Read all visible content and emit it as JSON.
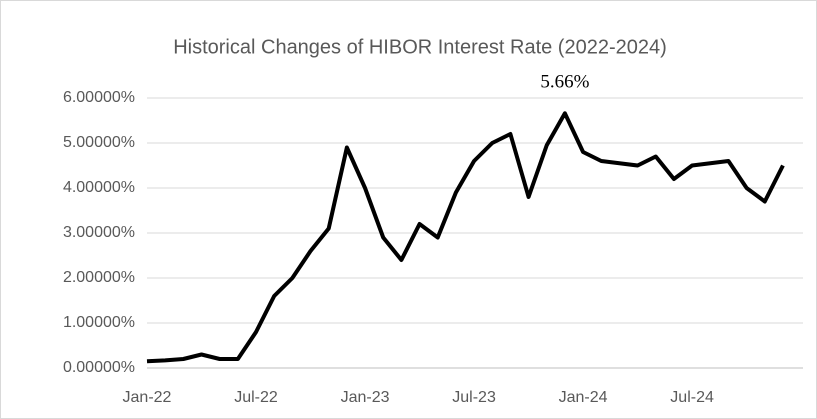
{
  "chart_data": {
    "type": "line",
    "title": "Historical Changes of HIBOR Interest Rate (2022-2024)",
    "annotation": "5.66%",
    "categories": [
      "Jan-22",
      null,
      null,
      null,
      null,
      null,
      "Jul-22",
      null,
      null,
      null,
      null,
      null,
      "Jan-23",
      null,
      null,
      null,
      null,
      null,
      "Jul-23",
      null,
      null,
      null,
      null,
      null,
      "Jan-24",
      null,
      null,
      null,
      null,
      null,
      "Jul-24",
      null,
      null,
      null,
      null,
      null
    ],
    "series": [
      {
        "name": "HIBOR",
        "color": "#000000",
        "values": [
          0.15,
          0.17,
          0.2,
          0.3,
          0.2,
          0.2,
          0.8,
          1.6,
          2.0,
          2.6,
          3.1,
          4.9,
          4.0,
          2.9,
          2.4,
          3.2,
          2.9,
          3.9,
          4.6,
          5.0,
          5.2,
          3.8,
          4.95,
          5.66,
          4.8,
          4.6,
          4.55,
          4.5,
          4.7,
          4.2,
          4.5,
          4.55,
          4.6,
          4.0,
          3.7,
          4.5
        ]
      }
    ],
    "ylim": [
      0,
      6
    ],
    "yticks": [
      {
        "value": 0,
        "label": "0.00000%"
      },
      {
        "value": 1,
        "label": "1.00000%"
      },
      {
        "value": 2,
        "label": "2.00000%"
      },
      {
        "value": 3,
        "label": "3.00000%"
      },
      {
        "value": 4,
        "label": "4.00000%"
      },
      {
        "value": 5,
        "label": "5.00000%"
      },
      {
        "value": 6,
        "label": "6.00000%"
      }
    ],
    "grid": true
  }
}
